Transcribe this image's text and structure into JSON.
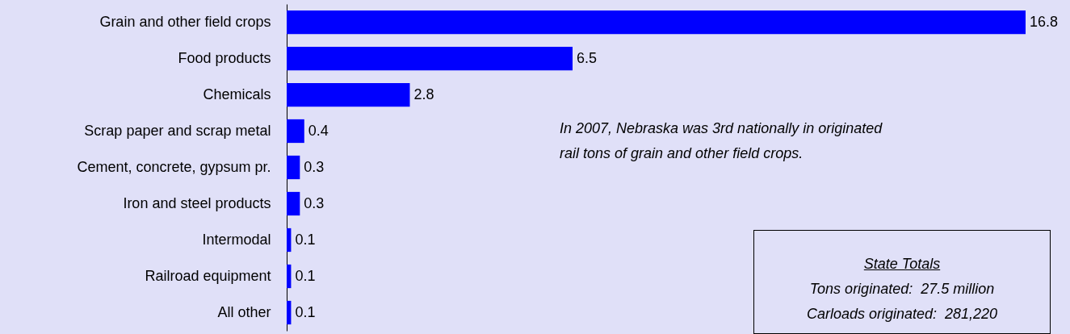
{
  "chart_data": {
    "type": "bar",
    "orientation": "horizontal",
    "categories": [
      "Grain and other field crops",
      "Food products",
      "Chemicals",
      "Scrap paper and scrap metal",
      "Cement, concrete, gypsum pr.",
      "Iron and steel products",
      "Intermodal",
      "Railroad equipment",
      "All other"
    ],
    "values": [
      16.8,
      6.5,
      2.8,
      0.4,
      0.3,
      0.3,
      0.1,
      0.1,
      0.1
    ],
    "color": "#0000ff",
    "data_labels": true,
    "tick_labels": "y",
    "annotations": [
      "In 2007, Nebraska was 3rd nationally in originated rail tons of grain and other field crops.",
      "State Totals",
      "Tons originated:  27.5 million",
      "Carloads originated:  281,220"
    ]
  }
}
